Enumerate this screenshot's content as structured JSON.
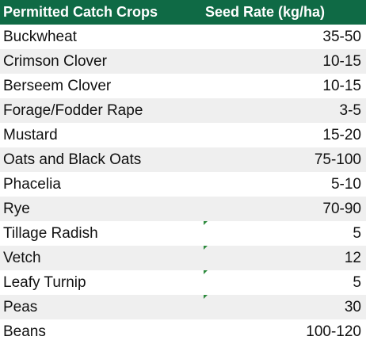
{
  "table": {
    "header": {
      "crop": "Permitted Catch Crops",
      "rate": "Seed Rate (kg/ha)"
    },
    "rows": [
      {
        "crop": "Buckwheat",
        "rate": "35-50"
      },
      {
        "crop": "Crimson Clover",
        "rate": "10-15"
      },
      {
        "crop": "Berseem Clover",
        "rate": "10-15"
      },
      {
        "crop": "Forage/Fodder Rape",
        "rate": "3-5"
      },
      {
        "crop": "Mustard",
        "rate": "15-20"
      },
      {
        "crop": "Oats and Black Oats",
        "rate": "75-100"
      },
      {
        "crop": "Phacelia",
        "rate": "5-10"
      },
      {
        "crop": "Rye",
        "rate": "70-90"
      },
      {
        "crop": "Tillage Radish",
        "rate": "5"
      },
      {
        "crop": "Vetch",
        "rate": "12"
      },
      {
        "crop": "Leafy Turnip",
        "rate": "5"
      },
      {
        "crop": "Peas",
        "rate": "30"
      },
      {
        "crop": "Beans",
        "rate": "100-120"
      }
    ]
  },
  "colors": {
    "header_bg": "#0f6a45",
    "header_text": "#ffffff",
    "alt_row_bg": "#efefef",
    "cell_indicator": "#2e8b3e"
  }
}
